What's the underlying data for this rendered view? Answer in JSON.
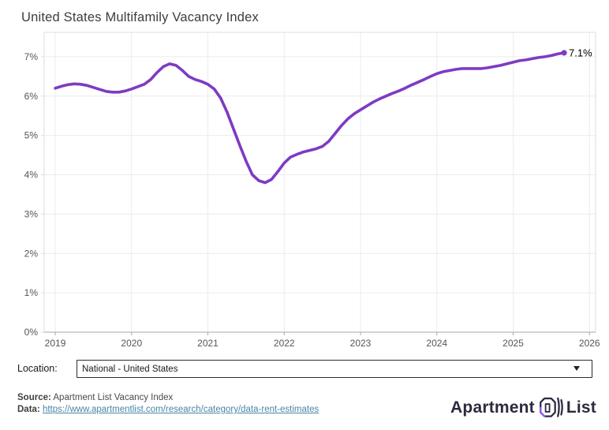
{
  "title": "United States Multifamily Vacancy Index",
  "chart_data": {
    "type": "line",
    "title": "United States Multifamily Vacancy Index",
    "xlabel": "",
    "ylabel": "",
    "xlim": [
      2018.855,
      2026.08
    ],
    "ylim": [
      0,
      7.62
    ],
    "grid": true,
    "x_ticks": [
      2019,
      2020,
      2021,
      2022,
      2023,
      2024,
      2025,
      2026
    ],
    "x_tick_labels": [
      "2019",
      "2020",
      "2021",
      "2022",
      "2023",
      "2024",
      "2025",
      "2026"
    ],
    "y_ticks": [
      0,
      1,
      2,
      3,
      4,
      5,
      6,
      7
    ],
    "y_tick_labels": [
      "0%",
      "1%",
      "2%",
      "3%",
      "4%",
      "5%",
      "6%",
      "7%"
    ],
    "end_label": "7.1%",
    "series": [
      {
        "name": "US Multifamily Vacancy Index",
        "color": "#7d3bc3",
        "x": [
          2019.0,
          2019.083,
          2019.167,
          2019.25,
          2019.333,
          2019.417,
          2019.5,
          2019.583,
          2019.667,
          2019.75,
          2019.833,
          2019.917,
          2020.0,
          2020.083,
          2020.167,
          2020.25,
          2020.333,
          2020.417,
          2020.5,
          2020.583,
          2020.667,
          2020.75,
          2020.833,
          2020.917,
          2021.0,
          2021.083,
          2021.167,
          2021.25,
          2021.333,
          2021.417,
          2021.5,
          2021.583,
          2021.667,
          2021.75,
          2021.833,
          2021.917,
          2022.0,
          2022.083,
          2022.167,
          2022.25,
          2022.333,
          2022.417,
          2022.5,
          2022.583,
          2022.667,
          2022.75,
          2022.833,
          2022.917,
          2023.0,
          2023.083,
          2023.167,
          2023.25,
          2023.333,
          2023.417,
          2023.5,
          2023.583,
          2023.667,
          2023.75,
          2023.833,
          2023.917,
          2024.0,
          2024.083,
          2024.167,
          2024.25,
          2024.333,
          2024.417,
          2024.5,
          2024.583,
          2024.667,
          2024.75,
          2024.833,
          2024.917,
          2025.0,
          2025.083,
          2025.167,
          2025.25,
          2025.333,
          2025.417,
          2025.5,
          2025.583,
          2025.667
        ],
        "values": [
          6.2,
          6.25,
          6.29,
          6.31,
          6.3,
          6.27,
          6.22,
          6.17,
          6.12,
          6.1,
          6.1,
          6.13,
          6.18,
          6.24,
          6.3,
          6.42,
          6.6,
          6.75,
          6.82,
          6.78,
          6.65,
          6.5,
          6.42,
          6.37,
          6.3,
          6.18,
          5.95,
          5.6,
          5.18,
          4.75,
          4.35,
          4.0,
          3.85,
          3.8,
          3.88,
          4.08,
          4.3,
          4.45,
          4.52,
          4.58,
          4.62,
          4.66,
          4.72,
          4.85,
          5.05,
          5.25,
          5.42,
          5.55,
          5.65,
          5.75,
          5.85,
          5.93,
          6.0,
          6.07,
          6.13,
          6.2,
          6.28,
          6.35,
          6.42,
          6.5,
          6.57,
          6.62,
          6.65,
          6.68,
          6.7,
          6.7,
          6.7,
          6.7,
          6.72,
          6.75,
          6.78,
          6.82,
          6.86,
          6.9,
          6.92,
          6.95,
          6.98,
          7.0,
          7.03,
          7.07,
          7.1
        ]
      }
    ]
  },
  "location": {
    "label": "Location:",
    "selected": "National - United States",
    "options": [
      "National - United States"
    ]
  },
  "footer": {
    "source_label": "Source:",
    "source_text": "Apartment List Vacancy Index",
    "data_label": "Data:",
    "link": "https://www.apartmentlist.com/research/category/data-rent-estimates",
    "logo_text_1": "Apartment",
    "logo_text_2": "List"
  },
  "colors": {
    "line": "#7d3bc3",
    "grid": "#ececec",
    "border": "#dcdcdc",
    "axis": "#a8a8a8",
    "tick_text": "#555555",
    "title_text": "#3c3c3c",
    "end_label_text": "#000000",
    "link": "#4886a5",
    "logo": "#2d2a3e",
    "logo_accent": "#8b5cf6"
  }
}
